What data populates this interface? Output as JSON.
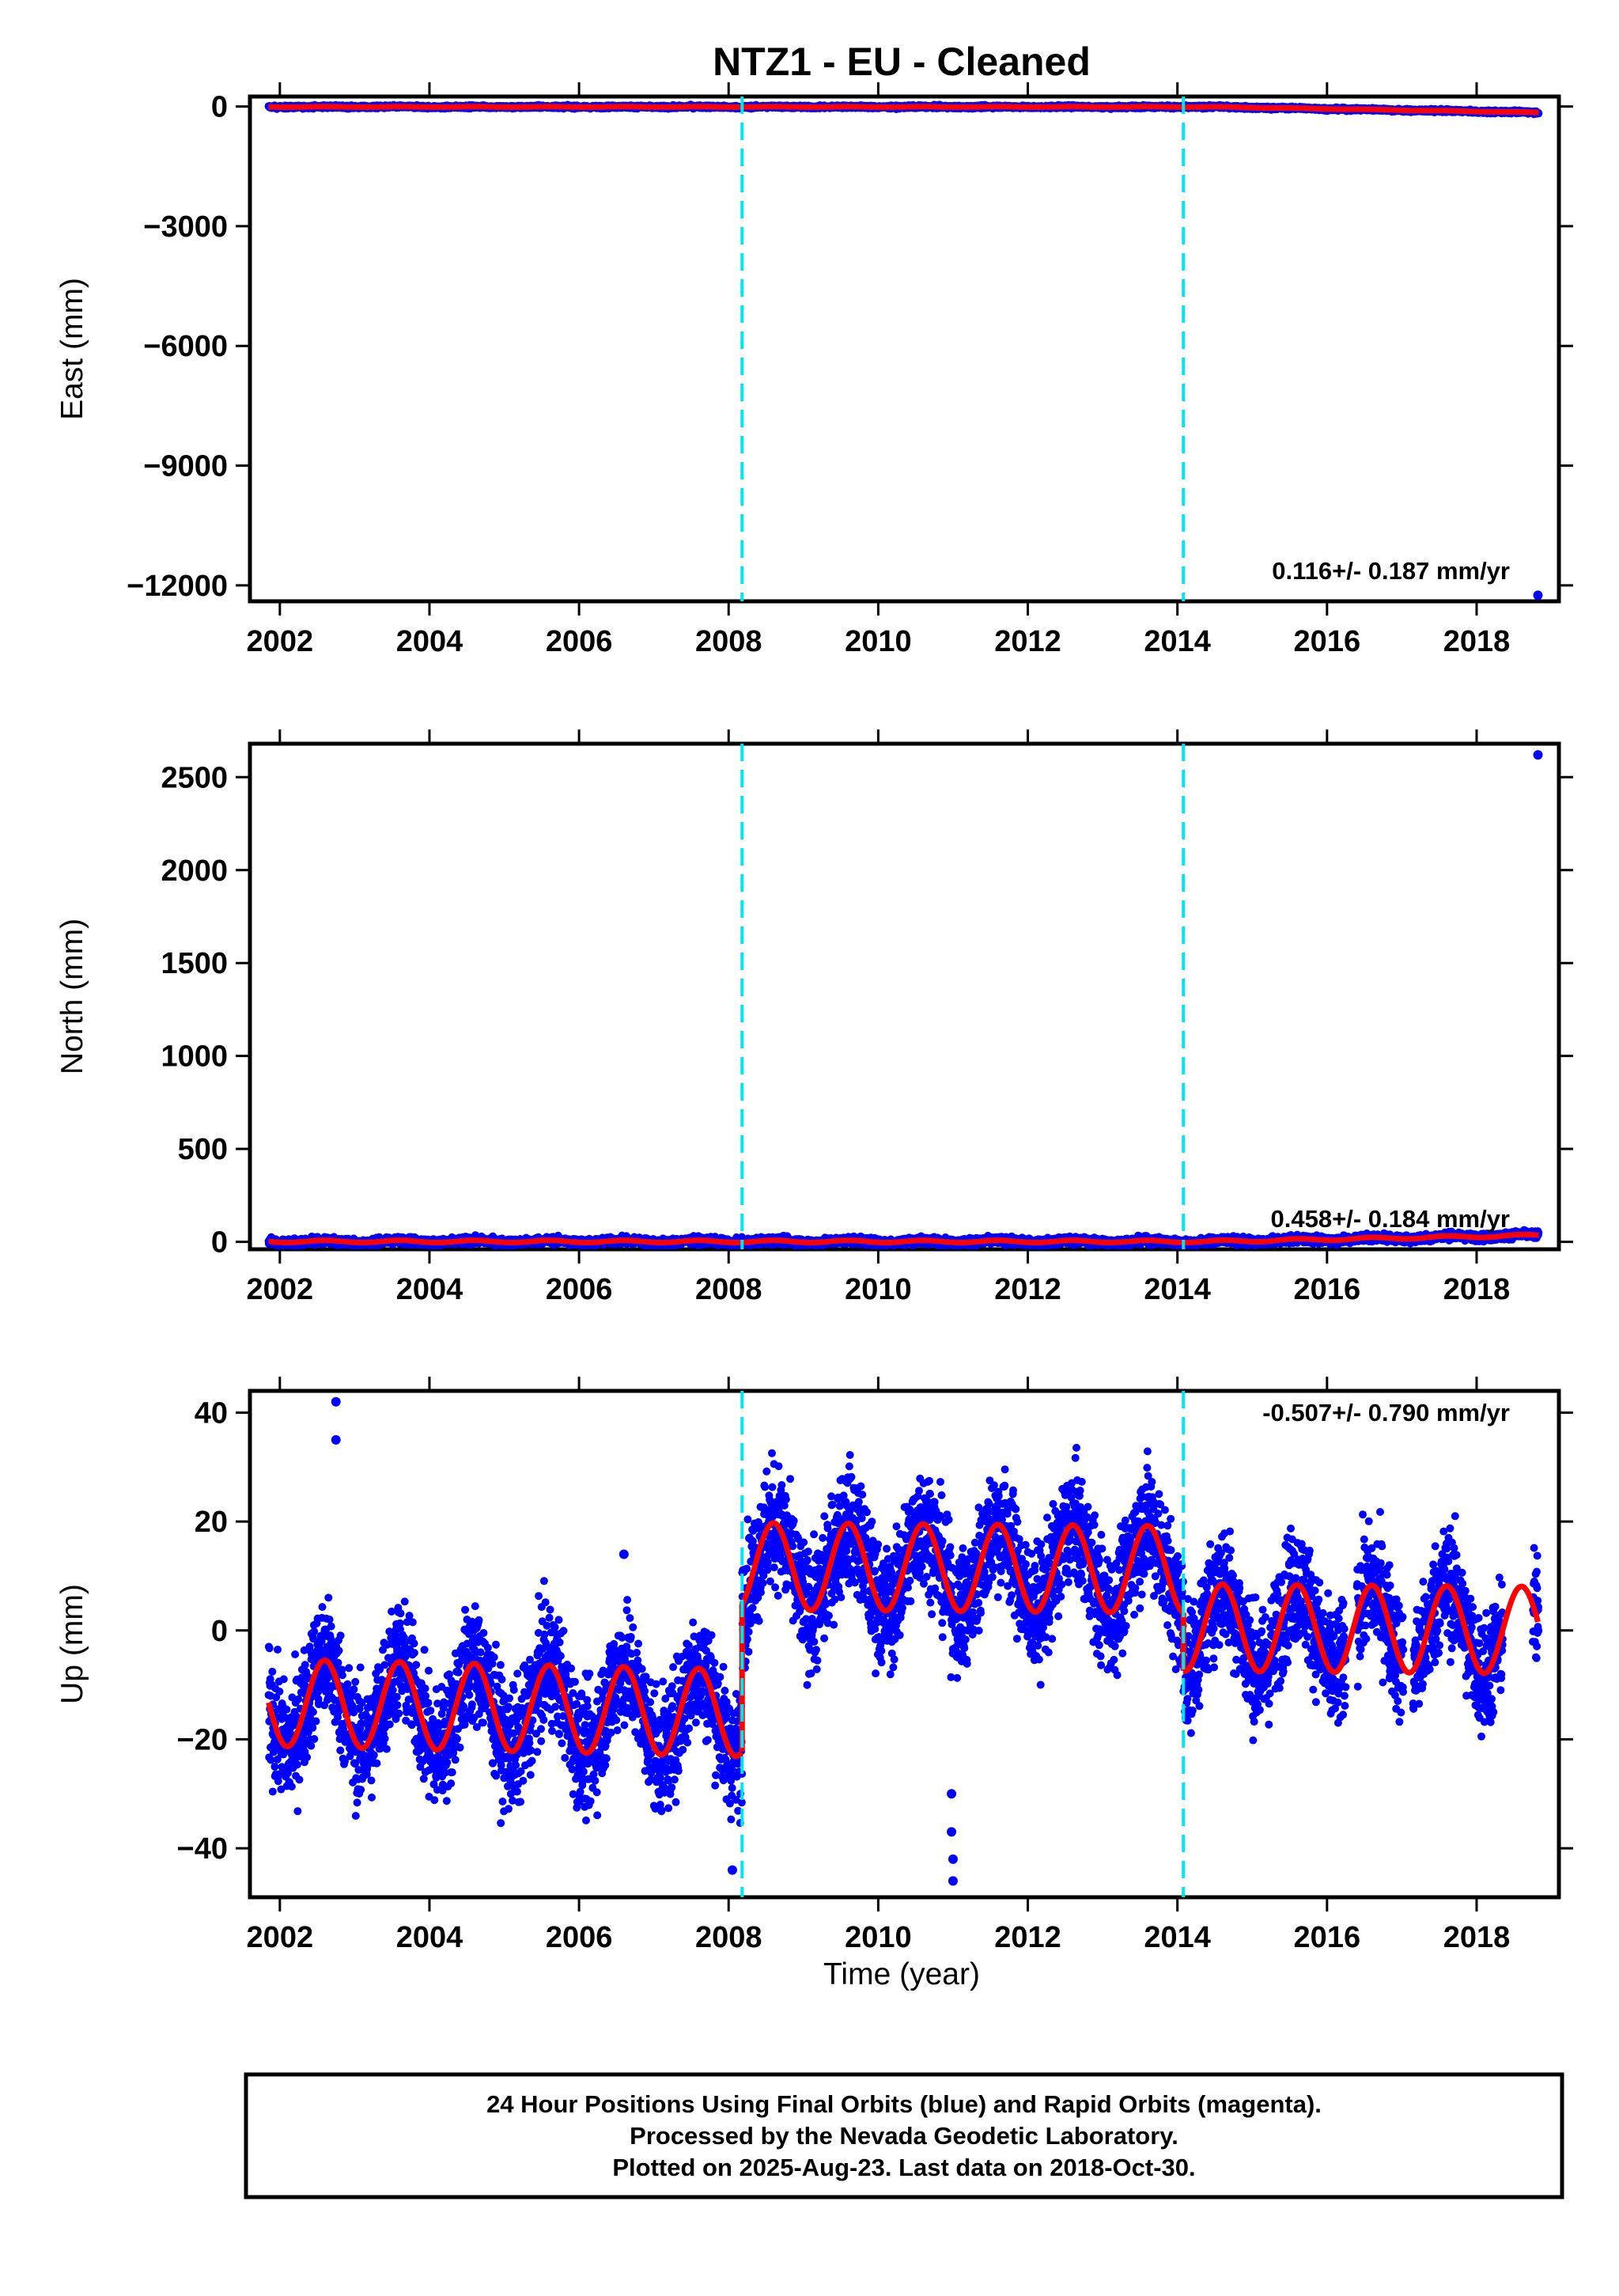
{
  "chart_data": {
    "title": "NTZ1  - EU - Cleaned",
    "type": "scatter",
    "xlabel": "Time (year)",
    "xlim": [
      2001.6,
      2019.1
    ],
    "xticks": [
      2002,
      2004,
      2006,
      2008,
      2010,
      2012,
      2014,
      2016,
      2018
    ],
    "breaks": [
      2008.18,
      2014.08
    ],
    "colors": {
      "data": "#0000ff",
      "model": "#ff0000",
      "breaks": "#00e5ee"
    },
    "series": [
      {
        "name": "Final Orbits (blue)",
        "color": "#0000ff"
      },
      {
        "name": "Rapid Orbits (magenta)",
        "color": "#ff00ff"
      }
    ],
    "panels": [
      {
        "id": "east",
        "ylabel": "East (mm)",
        "ylim": [
          -12400,
          250
        ],
        "yticks": [
          0,
          -3000,
          -6000,
          -9000,
          -12000
        ],
        "ytick_labels": [
          "0",
          "−3000",
          "−6000",
          "−9000",
          "−12000"
        ],
        "rate": "0.116+/- 0.187 mm/yr",
        "scatter_spread": 18,
        "outliers": [
          [
            2018.82,
            -12250
          ]
        ],
        "model_level": -10,
        "model_end": -150
      },
      {
        "id": "north",
        "ylabel": "North (mm)",
        "ylim": [
          -40,
          2680
        ],
        "yticks": [
          0,
          500,
          1000,
          1500,
          2000,
          2500
        ],
        "ytick_labels": [
          "0",
          "500",
          "1000",
          "1500",
          "2000",
          "2500"
        ],
        "rate": "0.458+/- 0.184 mm/yr",
        "scatter_spread": 10,
        "outliers": [
          [
            2018.82,
            2620
          ]
        ],
        "model_level": 2,
        "model_end": 35
      },
      {
        "id": "up",
        "ylabel": "Up (mm)",
        "ylim": [
          -49,
          44
        ],
        "yticks": [
          40,
          20,
          0,
          -20,
          -40
        ],
        "ytick_labels": [
          "40",
          "20",
          "0",
          "−20",
          "−40"
        ],
        "rate": "-0.507+/- 0.790 mm/yr",
        "segments": [
          {
            "start": 2001.85,
            "end": 2008.18,
            "mean": -14.2,
            "trend": -0.3
          },
          {
            "start": 2008.18,
            "end": 2014.08,
            "mean": 11.5,
            "trend": -0.1
          },
          {
            "start": 2014.08,
            "end": 2018.83,
            "mean": 0.3,
            "trend": -0.1
          }
        ],
        "seasonal_amplitude": 8.0,
        "seasonal_peak_phase": 0.6,
        "scatter_spread": 5.5,
        "outliers": [
          [
            2002.75,
            42
          ],
          [
            2002.75,
            35
          ],
          [
            2010.98,
            -30
          ],
          [
            2010.98,
            -37
          ],
          [
            2011.0,
            -42
          ],
          [
            2011.0,
            -46
          ],
          [
            2006.6,
            14
          ],
          [
            2008.2,
            11
          ],
          [
            2008.05,
            -44
          ]
        ]
      }
    ]
  },
  "footer": {
    "line1": "24 Hour Positions Using Final Orbits (blue) and Rapid Orbits (magenta).",
    "line2": "Processed by the Nevada Geodetic Laboratory.",
    "line3": "Plotted on 2025-Aug-23. Last data on 2018-Oct-30."
  }
}
